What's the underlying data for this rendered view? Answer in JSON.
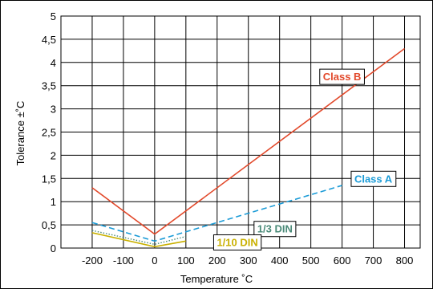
{
  "chart_data": {
    "type": "line",
    "title": "",
    "xlabel": "Temperature ˚C",
    "ylabel": "Tolerance ±˚C",
    "xlim": [
      -300,
      850
    ],
    "ylim": [
      0,
      5
    ],
    "x_ticks": [
      -200,
      -100,
      0,
      100,
      200,
      300,
      400,
      500,
      600,
      700,
      800
    ],
    "x_tick_labels": [
      "-200",
      "-100",
      "0",
      "100",
      "200",
      "300",
      "400",
      "500",
      "600",
      "700",
      "800"
    ],
    "y_ticks": [
      0,
      0.5,
      1,
      1.5,
      2,
      2.5,
      3,
      3.5,
      4,
      4.5,
      5
    ],
    "y_tick_labels": [
      "0",
      "0,5",
      "1",
      "1,5",
      "2",
      "2,5",
      "3",
      "3,5",
      "4",
      "4,5",
      "5"
    ],
    "grid": true,
    "series": [
      {
        "name": "Class B",
        "color": "#e2492b",
        "style": "solid",
        "x": [
          -200,
          0,
          800
        ],
        "y": [
          1.3,
          0.3,
          4.3
        ],
        "label": {
          "x": 600,
          "y": 3.7
        }
      },
      {
        "name": "Class A",
        "color": "#1a9bd7",
        "style": "dashed",
        "x": [
          -200,
          0,
          600
        ],
        "y": [
          0.55,
          0.15,
          1.35
        ],
        "label": {
          "x": 700,
          "y": 1.5
        }
      },
      {
        "name": "1/3 DIN",
        "color": "#4a8a78",
        "style": "dotted",
        "x": [
          -200,
          0,
          100
        ],
        "y": [
          0.38,
          0.08,
          0.25
        ],
        "label": {
          "x": 385,
          "y": 0.42
        }
      },
      {
        "name": "1/10 DIN",
        "color": "#c9b000",
        "style": "solid",
        "x": [
          -200,
          0,
          100
        ],
        "y": [
          0.33,
          0.03,
          0.15
        ],
        "label": {
          "x": 265,
          "y": 0.13
        }
      }
    ]
  }
}
